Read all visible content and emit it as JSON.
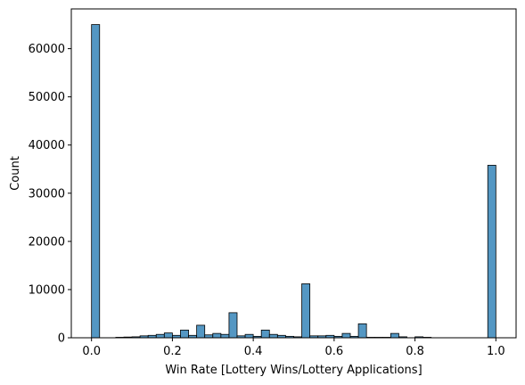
{
  "chart_data": {
    "type": "bar",
    "title": "",
    "xlabel": "Win Rate [Lottery Wins/Lottery Applications]",
    "ylabel": "Count",
    "xlim": [
      -0.05,
      1.05
    ],
    "ylim": [
      0,
      68250
    ],
    "xticks": [
      0.0,
      0.2,
      0.4,
      0.6,
      0.8,
      1.0
    ],
    "xtick_labels": [
      "0.0",
      "0.2",
      "0.4",
      "0.6",
      "0.8",
      "1.0"
    ],
    "yticks": [
      0,
      10000,
      20000,
      30000,
      40000,
      50000,
      60000
    ],
    "ytick_labels": [
      "0",
      "10000",
      "20000",
      "30000",
      "40000",
      "50000",
      "60000"
    ],
    "bin_width": 0.02,
    "bin_starts": [
      0.0,
      0.02,
      0.04,
      0.06,
      0.08,
      0.1,
      0.12,
      0.14,
      0.16,
      0.18,
      0.2,
      0.22,
      0.24,
      0.26,
      0.28,
      0.3,
      0.32,
      0.34,
      0.36,
      0.38,
      0.4,
      0.42,
      0.44,
      0.46,
      0.48,
      0.5,
      0.52,
      0.54,
      0.56,
      0.58,
      0.6,
      0.62,
      0.64,
      0.66,
      0.68,
      0.7,
      0.72,
      0.74,
      0.76,
      0.78,
      0.8,
      0.82,
      0.84,
      0.86,
      0.88,
      0.9,
      0.92,
      0.94,
      0.96,
      0.98
    ],
    "values": [
      65000,
      0,
      0,
      100,
      150,
      200,
      400,
      500,
      700,
      1000,
      500,
      1600,
      500,
      2600,
      600,
      900,
      700,
      5200,
      400,
      700,
      300,
      1600,
      700,
      500,
      300,
      200,
      11200,
      400,
      400,
      500,
      300,
      900,
      300,
      2900,
      100,
      100,
      100,
      900,
      200,
      0,
      200,
      100,
      0,
      0,
      0,
      0,
      0,
      0,
      0,
      35800
    ],
    "bar_color": "#5497c3",
    "edge_color": "#000000",
    "grid": false
  }
}
